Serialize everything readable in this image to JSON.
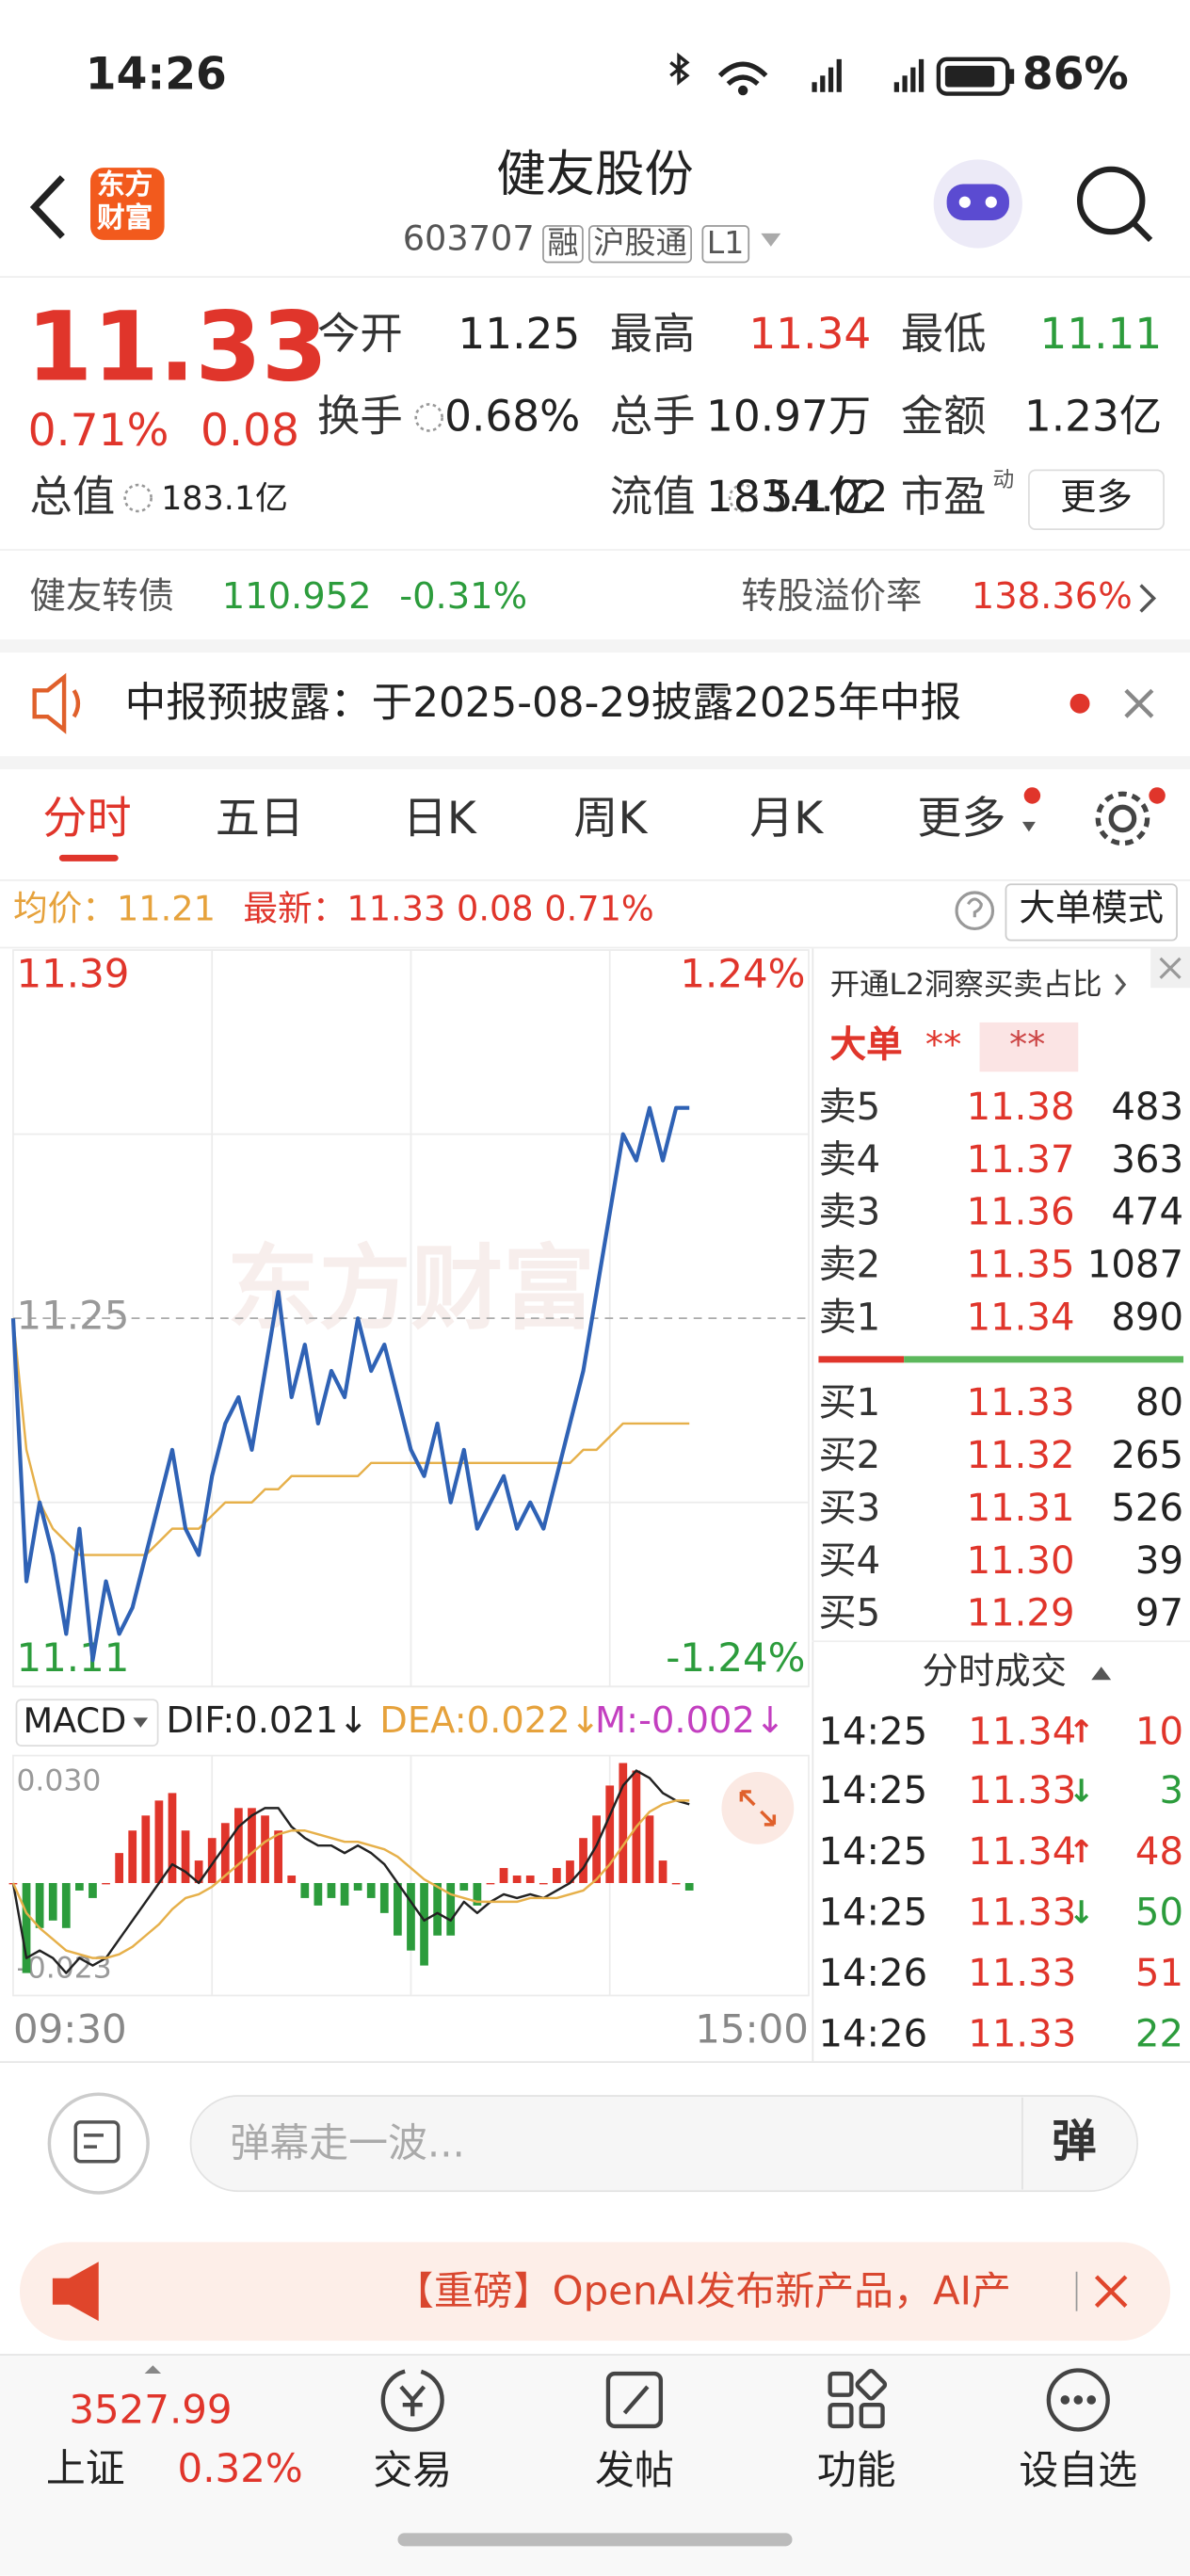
{
  "status_bar": {
    "time": "14:26",
    "battery": "86%"
  },
  "header": {
    "logo": [
      "东方",
      "财富"
    ],
    "title": "健友股份",
    "code": "603707",
    "tags": [
      "融",
      "沪股通",
      "L1"
    ]
  },
  "quote": {
    "price": "11.33",
    "change_pct": "0.71%",
    "change": "0.08",
    "fields": [
      {
        "label": "今开",
        "value": "11.25"
      },
      {
        "label": "最高",
        "value": "11.34"
      },
      {
        "label": "最低",
        "value": "11.11"
      },
      {
        "label": "换手",
        "value": "0.68%"
      },
      {
        "label": "总手",
        "value": "10.97万"
      },
      {
        "label": "金额",
        "value": "1.23亿"
      },
      {
        "label": "总值",
        "value": "183.1亿"
      },
      {
        "label": "流值",
        "value": "183.1亿"
      },
      {
        "label": "市盈",
        "sup": "动",
        "value": "54.02"
      }
    ],
    "more": "更多"
  },
  "bond": {
    "name": "健友转债",
    "price": "110.952",
    "change": "-0.31%",
    "premium_label": "转股溢价率",
    "premium": "138.36%"
  },
  "notice": {
    "text": "中报预披露：于2025-08-29披露2025年中报"
  },
  "tabs": [
    "分时",
    "五日",
    "日K",
    "周K",
    "月K",
    "更多"
  ],
  "mode_button": "大单模式",
  "chart_data": [
    {
      "type": "line",
      "watermark": "东方财富",
      "x": [
        0,
        4,
        8,
        12,
        16,
        20,
        24,
        28,
        32,
        36,
        40,
        44,
        48,
        52,
        56,
        60,
        64,
        68,
        72,
        76,
        80,
        84,
        88,
        92,
        96,
        100,
        104,
        108,
        112,
        116,
        120,
        124,
        128,
        132,
        136,
        140,
        144,
        148,
        152,
        156,
        160,
        164,
        168,
        172,
        176,
        180,
        184,
        188,
        192,
        196,
        200,
        204
      ],
      "xlim": [
        0,
        240
      ],
      "xticks": [
        {
          "value": 0,
          "label": "09:30"
        },
        {
          "value": 240,
          "label": "15:00"
        }
      ],
      "ylim": [
        11.11,
        11.39
      ],
      "yticks": [
        11.39,
        11.25,
        11.11
      ],
      "ytick_colors": [
        "#e0352b",
        "#999999",
        "#2c9c3c"
      ],
      "y2lim": [
        -1.24,
        1.24
      ],
      "y2ticks": [
        {
          "value": 1.24,
          "label": "1.24%"
        },
        {
          "value": -1.24,
          "label": "-1.24%"
        }
      ],
      "y2tick_colors": [
        "#e0352b",
        "#2c9c3c"
      ],
      "grid": true,
      "series": [
        {
          "name": "均价：11.21",
          "type": "line",
          "color": "#e6b04a",
          "values": [
            11.25,
            11.2,
            11.18,
            11.17,
            11.165,
            11.16,
            11.16,
            11.16,
            11.16,
            11.16,
            11.16,
            11.165,
            11.17,
            11.17,
            11.17,
            11.175,
            11.18,
            11.18,
            11.18,
            11.185,
            11.185,
            11.19,
            11.19,
            11.19,
            11.19,
            11.19,
            11.19,
            11.195,
            11.195,
            11.195,
            11.195,
            11.195,
            11.195,
            11.195,
            11.195,
            11.195,
            11.195,
            11.195,
            11.195,
            11.195,
            11.195,
            11.195,
            11.195,
            11.2,
            11.2,
            11.205,
            11.21,
            11.21,
            11.21,
            11.21,
            11.21,
            11.21
          ]
        },
        {
          "name": "最新：11.33 0.08 0.71%",
          "type": "line",
          "color": "#2f62b5",
          "values": [
            11.25,
            11.15,
            11.18,
            11.16,
            11.13,
            11.17,
            11.12,
            11.15,
            11.13,
            11.14,
            11.16,
            11.18,
            11.2,
            11.17,
            11.16,
            11.19,
            11.21,
            11.22,
            11.2,
            11.23,
            11.26,
            11.22,
            11.24,
            11.21,
            11.23,
            11.22,
            11.25,
            11.23,
            11.24,
            11.22,
            11.2,
            11.19,
            11.21,
            11.18,
            11.2,
            11.17,
            11.18,
            11.19,
            11.17,
            11.18,
            11.17,
            11.19,
            11.21,
            11.23,
            11.26,
            11.29,
            11.32,
            11.31,
            11.33,
            11.31,
            11.33,
            11.33
          ]
        }
      ]
    },
    {
      "type": "macd",
      "title": "MACD",
      "x": [
        0,
        4,
        8,
        12,
        16,
        20,
        24,
        28,
        32,
        36,
        40,
        44,
        48,
        52,
        56,
        60,
        64,
        68,
        72,
        76,
        80,
        84,
        88,
        92,
        96,
        100,
        104,
        108,
        112,
        116,
        120,
        124,
        128,
        132,
        136,
        140,
        144,
        148,
        152,
        156,
        160,
        164,
        168,
        172,
        176,
        180,
        184,
        188,
        192,
        196,
        200,
        204
      ],
      "xlim": [
        0,
        240
      ],
      "ylim": [
        -0.03,
        0.034
      ],
      "yticks": [
        {
          "value": 0.03,
          "label": "0.030"
        },
        -0.023
      ],
      "ytick_colors": [
        "#999999",
        "#999999"
      ],
      "grid": false,
      "series": [
        {
          "name": "DIF:0.021↓",
          "type": "line",
          "color": "#222222",
          "values": [
            0,
            -0.02,
            -0.018,
            -0.02,
            -0.024,
            -0.02,
            -0.022,
            -0.02,
            -0.015,
            -0.01,
            -0.005,
            0,
            0.005,
            0.003,
            0,
            0.005,
            0.01,
            0.015,
            0.018,
            0.02,
            0.02,
            0.015,
            0.012,
            0.01,
            0.01,
            0.008,
            0.01,
            0.008,
            0.005,
            0,
            -0.005,
            -0.01,
            -0.008,
            -0.01,
            -0.005,
            -0.008,
            -0.005,
            -0.003,
            -0.004,
            -0.003,
            -0.004,
            -0.002,
            0,
            0.004,
            0.01,
            0.018,
            0.026,
            0.03,
            0.028,
            0.024,
            0.022,
            0.021
          ]
        },
        {
          "name": "DEA:0.022↓",
          "type": "line",
          "color": "#e6b04a",
          "values": [
            0,
            -0.008,
            -0.012,
            -0.015,
            -0.018,
            -0.019,
            -0.02,
            -0.02,
            -0.019,
            -0.017,
            -0.014,
            -0.011,
            -0.007,
            -0.004,
            -0.003,
            -0.001,
            0.002,
            0.005,
            0.008,
            0.011,
            0.013,
            0.014,
            0.014,
            0.013,
            0.012,
            0.011,
            0.011,
            0.01,
            0.009,
            0.007,
            0.004,
            0.001,
            -0.001,
            -0.003,
            -0.004,
            -0.005,
            -0.005,
            -0.005,
            -0.005,
            -0.004,
            -0.004,
            -0.004,
            -0.003,
            -0.002,
            0.001,
            0.005,
            0.01,
            0.015,
            0.019,
            0.021,
            0.022,
            0.022
          ]
        },
        {
          "name": "M:-0.002↓",
          "type": "bar",
          "colors": [
            "#e0352b",
            "#2c9c3c"
          ],
          "values": [
            0,
            -0.024,
            -0.012,
            -0.01,
            -0.012,
            -0.002,
            -0.004,
            0,
            0.008,
            0.014,
            0.018,
            0.022,
            0.024,
            0.014,
            0.006,
            0.012,
            0.016,
            0.02,
            0.02,
            0.018,
            0.014,
            0.002,
            -0.004,
            -0.006,
            -0.004,
            -0.006,
            -0.002,
            -0.004,
            -0.008,
            -0.014,
            -0.018,
            -0.022,
            -0.014,
            -0.014,
            -0.002,
            -0.006,
            0,
            0.004,
            0.002,
            0.002,
            0,
            0.004,
            0.006,
            0.012,
            0.018,
            0.026,
            0.032,
            0.03,
            0.018,
            0.006,
            0,
            -0.002
          ]
        }
      ]
    }
  ],
  "order_panel": {
    "promo": "开通L2洞察买卖占比",
    "big_order": {
      "label": "大单",
      "values": [
        "**",
        "**"
      ]
    },
    "sell": [
      {
        "label": "卖5",
        "price": "11.38",
        "volume": "483"
      },
      {
        "label": "卖4",
        "price": "11.37",
        "volume": "363"
      },
      {
        "label": "卖3",
        "price": "11.36",
        "volume": "474"
      },
      {
        "label": "卖2",
        "price": "11.35",
        "volume": "1087"
      },
      {
        "label": "卖1",
        "price": "11.34",
        "volume": "890"
      }
    ],
    "buy": [
      {
        "label": "买1",
        "price": "11.33",
        "volume": "80"
      },
      {
        "label": "买2",
        "price": "11.32",
        "volume": "265"
      },
      {
        "label": "买3",
        "price": "11.31",
        "volume": "526"
      },
      {
        "label": "买4",
        "price": "11.30",
        "volume": "39"
      },
      {
        "label": "买5",
        "price": "11.29",
        "volume": "97"
      }
    ],
    "trades_title": "分时成交",
    "trades": [
      {
        "time": "14:25",
        "price": "11.34",
        "dir": "↑",
        "volume": "10",
        "color": "#e0352b"
      },
      {
        "time": "14:25",
        "price": "11.33",
        "dir": "↓",
        "volume": "3",
        "color": "#2c9c3c"
      },
      {
        "time": "14:25",
        "price": "11.34",
        "dir": "↑",
        "volume": "48",
        "color": "#e0352b"
      },
      {
        "time": "14:25",
        "price": "11.33",
        "dir": "↓",
        "volume": "50",
        "color": "#2c9c3c"
      },
      {
        "time": "14:26",
        "price": "11.33",
        "volume": "51",
        "color": "#e0352b"
      },
      {
        "time": "14:26",
        "price": "11.33",
        "volume": "22",
        "color": "#2c9c3c"
      }
    ]
  },
  "comment": {
    "placeholder": "弹幕走一波...",
    "button": "弹"
  },
  "news": {
    "text": "【重磅】OpenAI发布新产品，AI产"
  },
  "nav": {
    "index_value": "3527.99",
    "index_name": "上证",
    "index_change": "0.32%",
    "items": [
      "交易",
      "发帖",
      "功能",
      "设自选"
    ]
  }
}
